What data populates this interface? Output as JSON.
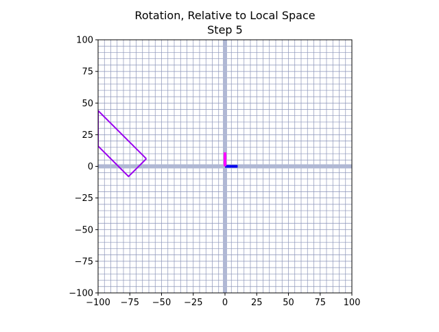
{
  "chart_data": {
    "type": "line",
    "title": "Rotation, Relative to Local Space",
    "subtitle": "Step 5",
    "xlabel": "",
    "ylabel": "",
    "xlim": [
      -100,
      100
    ],
    "ylim": [
      -100,
      100
    ],
    "x_ticks": [
      -100,
      -75,
      -50,
      -25,
      0,
      25,
      50,
      75,
      100
    ],
    "y_ticks": [
      -100,
      -75,
      -50,
      -25,
      0,
      25,
      50,
      75,
      100
    ],
    "x_tick_labels": [
      "−100",
      "−75",
      "−50",
      "−25",
      "0",
      "25",
      "50",
      "75",
      "100"
    ],
    "y_tick_labels": [
      "−100",
      "−75",
      "−50",
      "−25",
      "0",
      "25",
      "50",
      "75",
      "100"
    ],
    "grid": true,
    "grid_step": 5,
    "legend": "none",
    "colors": {
      "grid": "#8a93b8",
      "axes_lines": "#b0b8d4",
      "shape": "#9900ee",
      "local_x_axis": "#0000ee",
      "local_y_axis": "#ff00ff"
    },
    "axis_lines": [
      {
        "orientation": "vertical",
        "value": 0
      },
      {
        "orientation": "horizontal",
        "value": 0
      }
    ],
    "shape_outline": [
      {
        "x": -62,
        "y": 6
      },
      {
        "x": -76,
        "y": -8
      },
      {
        "x": -100,
        "y": 16
      },
      {
        "x": -100,
        "y": 44
      },
      {
        "x": -62,
        "y": 6
      }
    ],
    "local_axes": {
      "origin": {
        "x": 0,
        "y": 0
      },
      "x_end": {
        "x": 10,
        "y": 0
      },
      "y_end": {
        "x": 0,
        "y": 11
      }
    }
  }
}
